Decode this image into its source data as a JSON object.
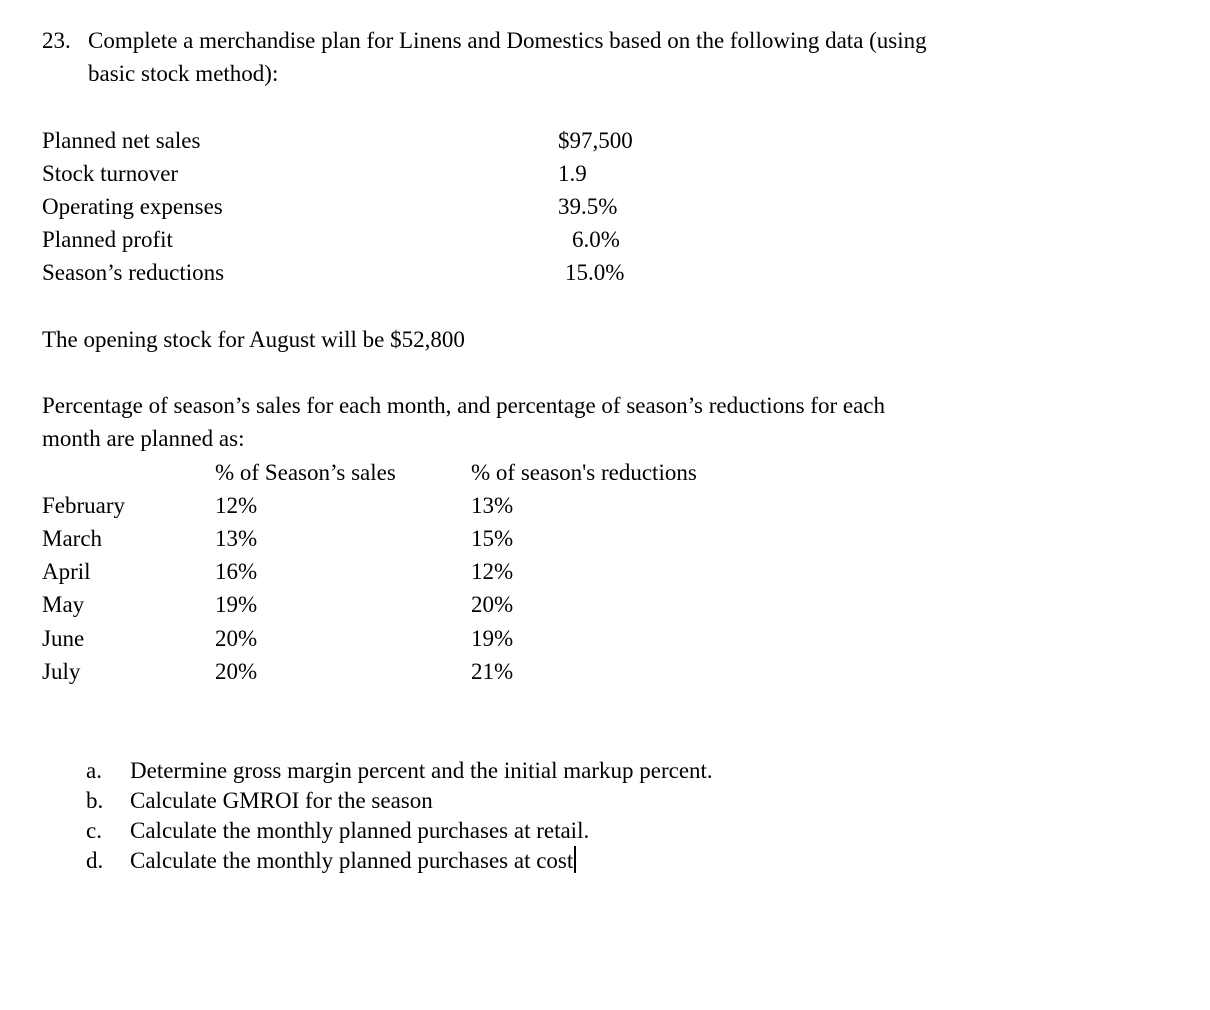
{
  "page": {
    "background_color": "#ffffff",
    "text_color": "#000000"
  },
  "question": {
    "number_label": "23.",
    "title_line1": "Complete a merchandise plan for Linens and Domestics based on the following data (using",
    "title_line2": "basic stock method):"
  },
  "data_list": {
    "items": [
      {
        "label": "Planned net sales",
        "value": "$97,500"
      },
      {
        "label": "Stock turnover",
        "value": "1.9"
      },
      {
        "label": "Operating expenses",
        "value": "39.5%"
      },
      {
        "label": "Planned profit",
        "value": "6.0%"
      },
      {
        "label": "Season’s reductions",
        "value": "15.0%"
      }
    ]
  },
  "opening_stock_line": "The opening stock for August will be $52,800",
  "plan_paragraph": {
    "line1": "Percentage of season’s sales for each month, and percentage of season’s reductions for each",
    "line2": "month are planned as:"
  },
  "monthly_table": {
    "columns": [
      "% of Season’s sales",
      "% of season's reductions"
    ],
    "rows": [
      {
        "month": "February",
        "sales_pct": "12%",
        "reductions_pct": "13%"
      },
      {
        "month": "March",
        "sales_pct": "13%",
        "reductions_pct": "15%"
      },
      {
        "month": "April",
        "sales_pct": "16%",
        "reductions_pct": "12%"
      },
      {
        "month": "May",
        "sales_pct": "19%",
        "reductions_pct": "20%"
      },
      {
        "month": "June",
        "sales_pct": "20%",
        "reductions_pct": "19%"
      },
      {
        "month": "July",
        "sales_pct": "20%",
        "reductions_pct": "21%"
      }
    ]
  },
  "tasks": {
    "items": [
      {
        "marker": "a.",
        "text": "Determine gross margin percent and the initial markup percent."
      },
      {
        "marker": "b.",
        "text": "Calculate GMROI for the season"
      },
      {
        "marker": "c.",
        "text": "Calculate the monthly planned purchases at retail."
      },
      {
        "marker": "d.",
        "text": "Calculate the monthly planned purchases at cost"
      }
    ]
  }
}
